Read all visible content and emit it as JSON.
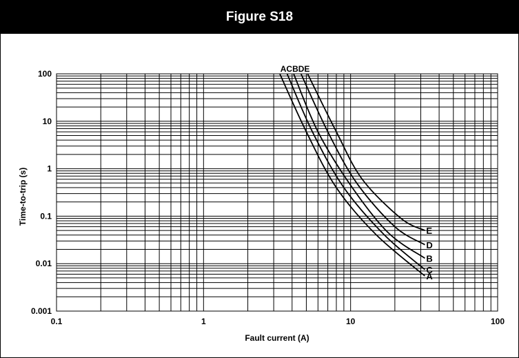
{
  "figure": {
    "title": "Figure S18"
  },
  "chart_data": {
    "type": "line",
    "xscale": "log",
    "yscale": "log",
    "xlabel": "Fault current (A)",
    "ylabel": "Time-to-trip (s)",
    "xlim": [
      0.1,
      100
    ],
    "ylim": [
      0.001,
      100
    ],
    "xticks": [
      "0.1",
      "1",
      "10",
      "100"
    ],
    "yticks": [
      "0.001",
      "0.01",
      "0.1",
      "1",
      "10",
      "100"
    ],
    "grid": true,
    "series": [
      {
        "name": "A",
        "x": [
          3.3,
          5,
          8,
          15,
          32
        ],
        "y": [
          100,
          6,
          0.4,
          0.04,
          0.0055
        ]
      },
      {
        "name": "C",
        "x": [
          3.7,
          5.5,
          9,
          17,
          32
        ],
        "y": [
          100,
          6,
          0.4,
          0.04,
          0.0075
        ]
      },
      {
        "name": "B",
        "x": [
          4.1,
          6,
          10,
          18,
          32
        ],
        "y": [
          100,
          6,
          0.45,
          0.045,
          0.013
        ]
      },
      {
        "name": "D",
        "x": [
          4.6,
          7,
          11,
          20,
          32
        ],
        "y": [
          100,
          6,
          0.5,
          0.06,
          0.025
        ]
      },
      {
        "name": "E",
        "x": [
          5.1,
          8,
          12,
          22,
          32
        ],
        "y": [
          100,
          6,
          0.6,
          0.09,
          0.05
        ]
      }
    ],
    "top_label": "ACBDE",
    "line_color": "#000000"
  }
}
